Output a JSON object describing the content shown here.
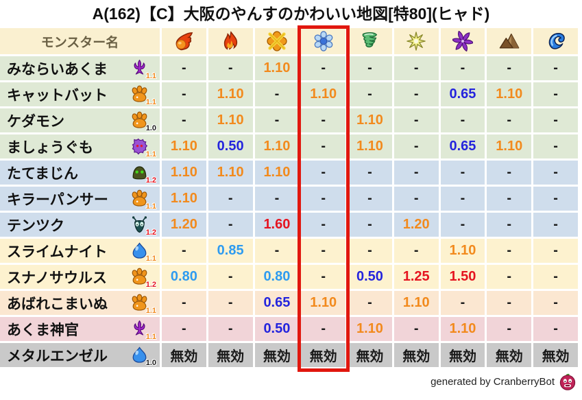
{
  "title": "A(162)【C】大阪のやんすのかわいい地図[特80](ヒャド)",
  "colors": {
    "header_bg": "#faf0d0",
    "highlight_red": "#e1170e",
    "value_orange": "#f28a1d",
    "value_red": "#e51420",
    "value_blue": "#2424dd",
    "value_lightblue": "#2e9bf0",
    "value_black": "#1a1a1a",
    "row_green": "#dfe9d5",
    "row_blue": "#cfddec",
    "row_yellow": "#fdf2cf",
    "row_peach": "#fbe7d1",
    "row_pink": "#f1d4d8",
    "row_gray": "#c9c9c9"
  },
  "header": {
    "name_column": "モンスター名",
    "element_columns": [
      {
        "icon": "fire-icon"
      },
      {
        "icon": "flame-icon"
      },
      {
        "icon": "burst-icon"
      },
      {
        "icon": "ice-icon",
        "highlighted": true
      },
      {
        "icon": "wind-icon"
      },
      {
        "icon": "light-icon"
      },
      {
        "icon": "dark-icon"
      },
      {
        "icon": "earth-icon"
      },
      {
        "icon": "water-icon"
      }
    ]
  },
  "rows": [
    {
      "name": "みならいあくま",
      "icon": "devil-icon",
      "rank": "1.1",
      "rank_color": "orange",
      "row_color": "green",
      "values": [
        [
          "-",
          "black"
        ],
        [
          "-",
          "black"
        ],
        [
          "1.10",
          "orange"
        ],
        [
          "-",
          "black"
        ],
        [
          "-",
          "black"
        ],
        [
          "-",
          "black"
        ],
        [
          "-",
          "black"
        ],
        [
          "-",
          "black"
        ],
        [
          "-",
          "black"
        ]
      ]
    },
    {
      "name": "キャットバット",
      "icon": "paw-icon",
      "rank": "1.1",
      "rank_color": "orange",
      "row_color": "green",
      "values": [
        [
          "-",
          "black"
        ],
        [
          "1.10",
          "orange"
        ],
        [
          "-",
          "black"
        ],
        [
          "1.10",
          "orange"
        ],
        [
          "-",
          "black"
        ],
        [
          "-",
          "black"
        ],
        [
          "0.65",
          "blue"
        ],
        [
          "1.10",
          "orange"
        ],
        [
          "-",
          "black"
        ]
      ]
    },
    {
      "name": "ケダモン",
      "icon": "paw-icon",
      "rank": "1.0",
      "rank_color": "black",
      "row_color": "green",
      "values": [
        [
          "-",
          "black"
        ],
        [
          "1.10",
          "orange"
        ],
        [
          "-",
          "black"
        ],
        [
          "-",
          "black"
        ],
        [
          "1.10",
          "orange"
        ],
        [
          "-",
          "black"
        ],
        [
          "-",
          "black"
        ],
        [
          "-",
          "black"
        ],
        [
          "-",
          "black"
        ]
      ]
    },
    {
      "name": "ましょうぐも",
      "icon": "spider-icon",
      "rank": "1.1",
      "rank_color": "orange",
      "row_color": "green",
      "values": [
        [
          "1.10",
          "orange"
        ],
        [
          "0.50",
          "blue"
        ],
        [
          "1.10",
          "orange"
        ],
        [
          "-",
          "black"
        ],
        [
          "1.10",
          "orange"
        ],
        [
          "-",
          "black"
        ],
        [
          "0.65",
          "blue"
        ],
        [
          "1.10",
          "orange"
        ],
        [
          "-",
          "black"
        ]
      ]
    },
    {
      "name": "たてまじん",
      "icon": "helmet-icon",
      "rank": "1.2",
      "rank_color": "red",
      "row_color": "blue",
      "values": [
        [
          "1.10",
          "orange"
        ],
        [
          "1.10",
          "orange"
        ],
        [
          "1.10",
          "orange"
        ],
        [
          "-",
          "black"
        ],
        [
          "-",
          "black"
        ],
        [
          "-",
          "black"
        ],
        [
          "-",
          "black"
        ],
        [
          "-",
          "black"
        ],
        [
          "-",
          "black"
        ]
      ]
    },
    {
      "name": "キラーパンサー",
      "icon": "paw-icon",
      "rank": "1.1",
      "rank_color": "orange",
      "row_color": "blue",
      "values": [
        [
          "1.10",
          "orange"
        ],
        [
          "-",
          "black"
        ],
        [
          "-",
          "black"
        ],
        [
          "-",
          "black"
        ],
        [
          "-",
          "black"
        ],
        [
          "-",
          "black"
        ],
        [
          "-",
          "black"
        ],
        [
          "-",
          "black"
        ],
        [
          "-",
          "black"
        ]
      ]
    },
    {
      "name": "テンツク",
      "icon": "bug-icon",
      "rank": "1.2",
      "rank_color": "red",
      "row_color": "blue",
      "values": [
        [
          "1.20",
          "orange"
        ],
        [
          "-",
          "black"
        ],
        [
          "1.60",
          "red"
        ],
        [
          "-",
          "black"
        ],
        [
          "-",
          "black"
        ],
        [
          "1.20",
          "orange"
        ],
        [
          "-",
          "black"
        ],
        [
          "-",
          "black"
        ],
        [
          "-",
          "black"
        ]
      ]
    },
    {
      "name": "スライムナイト",
      "icon": "slime-icon",
      "rank": "1.1",
      "rank_color": "orange",
      "row_color": "yellow",
      "values": [
        [
          "-",
          "black"
        ],
        [
          "0.85",
          "lightblue"
        ],
        [
          "-",
          "black"
        ],
        [
          "-",
          "black"
        ],
        [
          "-",
          "black"
        ],
        [
          "-",
          "black"
        ],
        [
          "1.10",
          "orange"
        ],
        [
          "-",
          "black"
        ],
        [
          "-",
          "black"
        ]
      ]
    },
    {
      "name": "スナノサウルス",
      "icon": "paw-icon",
      "rank": "1.2",
      "rank_color": "red",
      "row_color": "yellow",
      "values": [
        [
          "0.80",
          "lightblue"
        ],
        [
          "-",
          "black"
        ],
        [
          "0.80",
          "lightblue"
        ],
        [
          "-",
          "black"
        ],
        [
          "0.50",
          "blue"
        ],
        [
          "1.25",
          "red"
        ],
        [
          "1.50",
          "red"
        ],
        [
          "-",
          "black"
        ],
        [
          "-",
          "black"
        ]
      ]
    },
    {
      "name": "あばれこまいぬ",
      "icon": "paw-icon",
      "rank": "1.1",
      "rank_color": "orange",
      "row_color": "peach",
      "values": [
        [
          "-",
          "black"
        ],
        [
          "-",
          "black"
        ],
        [
          "0.65",
          "blue"
        ],
        [
          "1.10",
          "orange"
        ],
        [
          "-",
          "black"
        ],
        [
          "1.10",
          "orange"
        ],
        [
          "-",
          "black"
        ],
        [
          "-",
          "black"
        ],
        [
          "-",
          "black"
        ]
      ]
    },
    {
      "name": "あくま神官",
      "icon": "devil-icon",
      "rank": "1.1",
      "rank_color": "orange",
      "row_color": "pink",
      "values": [
        [
          "-",
          "black"
        ],
        [
          "-",
          "black"
        ],
        [
          "0.50",
          "blue"
        ],
        [
          "-",
          "black"
        ],
        [
          "1.10",
          "orange"
        ],
        [
          "-",
          "black"
        ],
        [
          "1.10",
          "orange"
        ],
        [
          "-",
          "black"
        ],
        [
          "-",
          "black"
        ]
      ]
    },
    {
      "name": "メタルエンゼル",
      "icon": "slime-icon",
      "rank": "1.0",
      "rank_color": "black",
      "row_color": "gray",
      "values": [
        [
          "無効",
          "black"
        ],
        [
          "無効",
          "black"
        ],
        [
          "無効",
          "black"
        ],
        [
          "無効",
          "black"
        ],
        [
          "無効",
          "black"
        ],
        [
          "無効",
          "black"
        ],
        [
          "無効",
          "black"
        ],
        [
          "無効",
          "black"
        ],
        [
          "無効",
          "black"
        ]
      ]
    }
  ],
  "footer": {
    "credit": "generated by CranberryBot",
    "icon": "cranberrybot-icon"
  },
  "chart_data": {
    "type": "table",
    "title": "A(162)【C】大阪のやんすのかわいい地図[特80](ヒャド)",
    "columns": [
      "モンスター名",
      "fire",
      "flame",
      "burst",
      "ice",
      "wind",
      "light",
      "dark",
      "earth",
      "water"
    ],
    "highlighted_column": "ice",
    "rows": [
      [
        "みならいあくま (1.1)",
        "-",
        "-",
        "1.10",
        "-",
        "-",
        "-",
        "-",
        "-",
        "-"
      ],
      [
        "キャットバット (1.1)",
        "-",
        "1.10",
        "-",
        "1.10",
        "-",
        "-",
        "0.65",
        "1.10",
        "-"
      ],
      [
        "ケダモン (1.0)",
        "-",
        "1.10",
        "-",
        "-",
        "1.10",
        "-",
        "-",
        "-",
        "-"
      ],
      [
        "ましょうぐも (1.1)",
        "1.10",
        "0.50",
        "1.10",
        "-",
        "1.10",
        "-",
        "0.65",
        "1.10",
        "-"
      ],
      [
        "たてまじん (1.2)",
        "1.10",
        "1.10",
        "1.10",
        "-",
        "-",
        "-",
        "-",
        "-",
        "-"
      ],
      [
        "キラーパンサー (1.1)",
        "1.10",
        "-",
        "-",
        "-",
        "-",
        "-",
        "-",
        "-",
        "-"
      ],
      [
        "テンツク (1.2)",
        "1.20",
        "-",
        "1.60",
        "-",
        "-",
        "1.20",
        "-",
        "-",
        "-"
      ],
      [
        "スライムナイト (1.1)",
        "-",
        "0.85",
        "-",
        "-",
        "-",
        "-",
        "1.10",
        "-",
        "-"
      ],
      [
        "スナノサウルス (1.2)",
        "0.80",
        "-",
        "0.80",
        "-",
        "0.50",
        "1.25",
        "1.50",
        "-",
        "-"
      ],
      [
        "あばれこまいぬ (1.1)",
        "-",
        "-",
        "0.65",
        "1.10",
        "-",
        "1.10",
        "-",
        "-",
        "-"
      ],
      [
        "あくま神官 (1.1)",
        "-",
        "-",
        "0.50",
        "-",
        "1.10",
        "-",
        "1.10",
        "-",
        "-"
      ],
      [
        "メタルエンゼル (1.0)",
        "無効",
        "無効",
        "無効",
        "無効",
        "無効",
        "無効",
        "無効",
        "無効",
        "無効"
      ]
    ],
    "footnote": "generated by CranberryBot"
  }
}
